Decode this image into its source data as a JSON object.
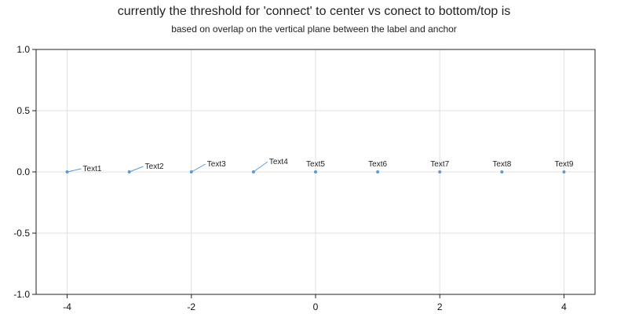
{
  "chart_data": {
    "type": "scatter",
    "title": "currently the threshold for 'connect' to center vs conect to bottom/top is",
    "subtitle": "based on overlap on the vertical plane between the label and anchor",
    "xlim": [
      -4.5,
      4.5
    ],
    "ylim": [
      -1.0,
      1.0
    ],
    "x_ticks": [
      -4,
      -2,
      0,
      2,
      4
    ],
    "y_ticks": [
      -1.0,
      -0.5,
      0.0,
      0.5,
      1.0
    ],
    "x_tick_labels": [
      "-4",
      "-2",
      "0",
      "2",
      "4"
    ],
    "y_tick_labels": [
      "-1.0",
      "-0.5",
      "0.0",
      "0.5",
      "1.0"
    ],
    "grid": true,
    "points": [
      {
        "x": -4,
        "y": 0,
        "label": "Text1"
      },
      {
        "x": -3,
        "y": 0,
        "label": "Text2"
      },
      {
        "x": -2,
        "y": 0,
        "label": "Text3"
      },
      {
        "x": -1,
        "y": 0,
        "label": "Text4"
      },
      {
        "x": 0,
        "y": 0,
        "label": "Text5"
      },
      {
        "x": 1,
        "y": 0,
        "label": "Text6"
      },
      {
        "x": 2,
        "y": 0,
        "label": "Text7"
      },
      {
        "x": 3,
        "y": 0,
        "label": "Text8"
      },
      {
        "x": 4,
        "y": 0,
        "label": "Text9"
      }
    ],
    "colors": {
      "marker": "#5b9bd5",
      "grid": "#e0e0e0",
      "axis": "#222222"
    }
  }
}
